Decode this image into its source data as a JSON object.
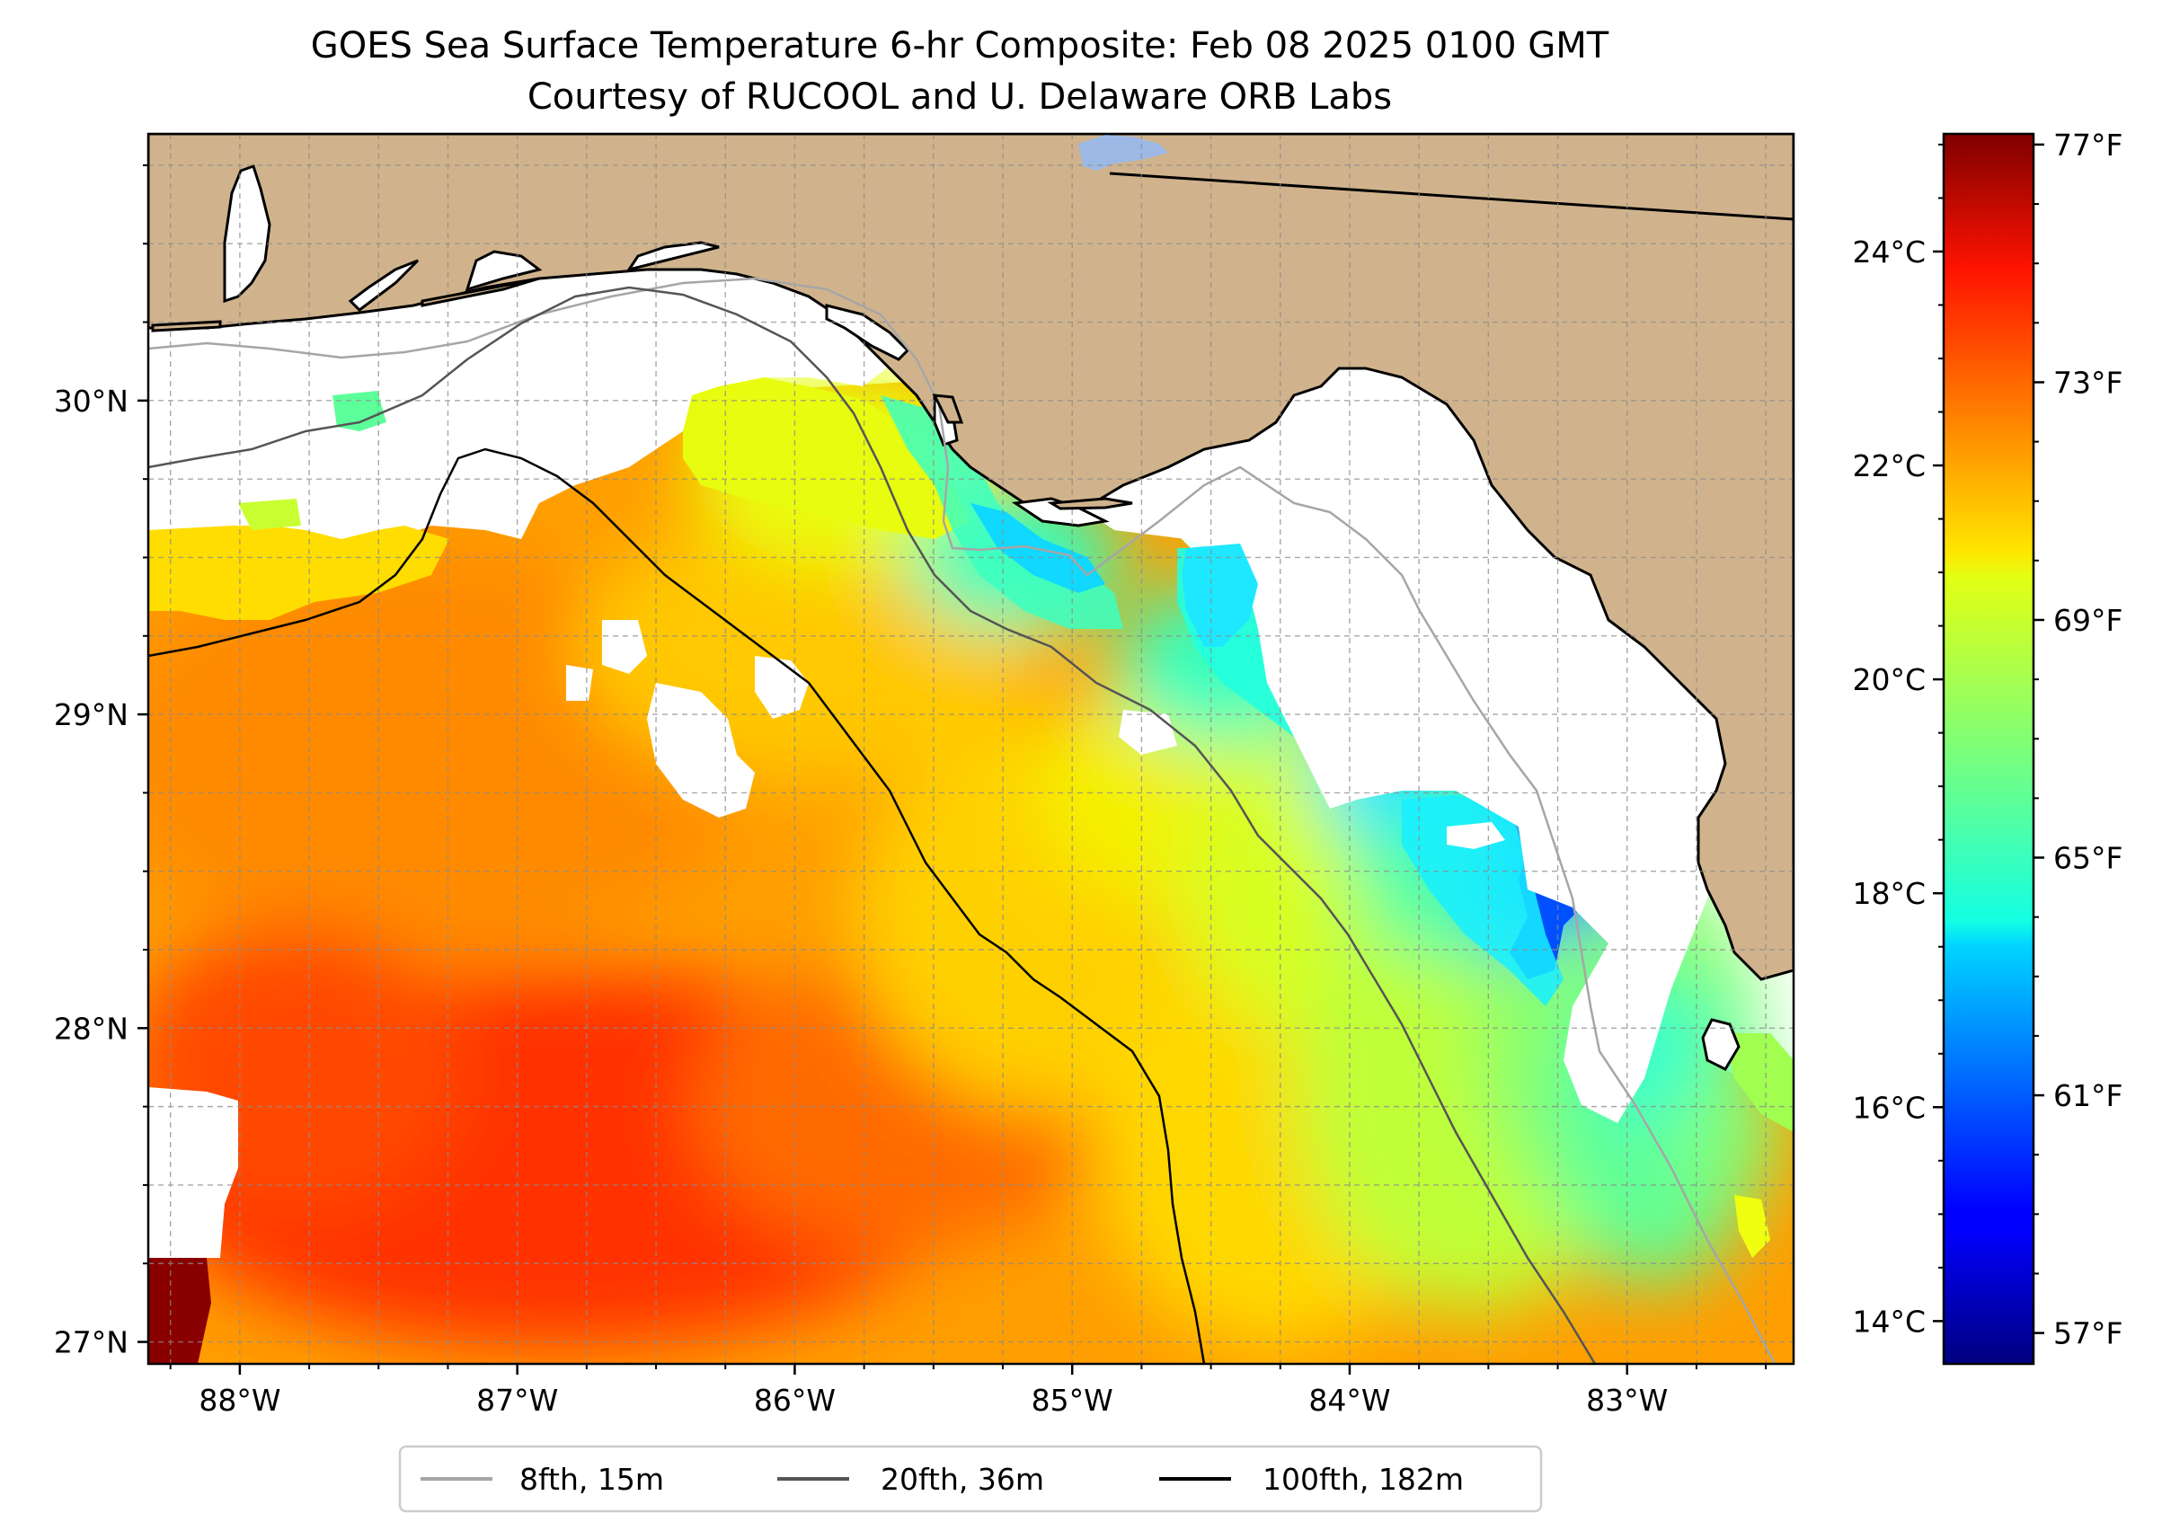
{
  "title": {
    "line1": "GOES Sea Surface Temperature 6-hr Composite: Feb 08 2025 0100 GMT",
    "line2": "Courtesy of RUCOOL and U. Delaware ORB Labs"
  },
  "map": {
    "lon_range": [
      -88.33,
      -82.4
    ],
    "lat_range": [
      26.93,
      30.85
    ],
    "lon_ticks": [
      -88,
      -87,
      -86,
      -85,
      -84,
      -83
    ],
    "lon_tick_labels": [
      "88°W",
      "87°W",
      "86°W",
      "85°W",
      "84°W",
      "83°W"
    ],
    "lat_ticks": [
      27,
      28,
      29,
      30
    ],
    "lat_tick_labels": [
      "27°N",
      "28°N",
      "29°N",
      "30°N"
    ],
    "grid": true,
    "land_color": "#d0b38c",
    "no_data_color": "#ffffff",
    "lake_color": "#9cb9e6"
  },
  "colorbar": {
    "colormap": "jet",
    "range_c": [
      13.6,
      25.1
    ],
    "celsius_ticks": [
      14,
      16,
      18,
      20,
      22,
      24
    ],
    "celsius_labels": [
      "14°C",
      "16°C",
      "18°C",
      "20°C",
      "22°C",
      "24°C"
    ],
    "fahrenheit_ticks": [
      57,
      61,
      65,
      69,
      73,
      77
    ],
    "fahrenheit_labels": [
      "57°F",
      "61°F",
      "65°F",
      "69°F",
      "73°F",
      "77°F"
    ]
  },
  "legend": {
    "placement": "bottom-center",
    "items": [
      {
        "label": "8fth, 15m",
        "color": "#a6a6a6"
      },
      {
        "label": "20fth, 36m",
        "color": "#555555"
      },
      {
        "label": "100fth, 182m",
        "color": "#000000"
      }
    ]
  }
}
